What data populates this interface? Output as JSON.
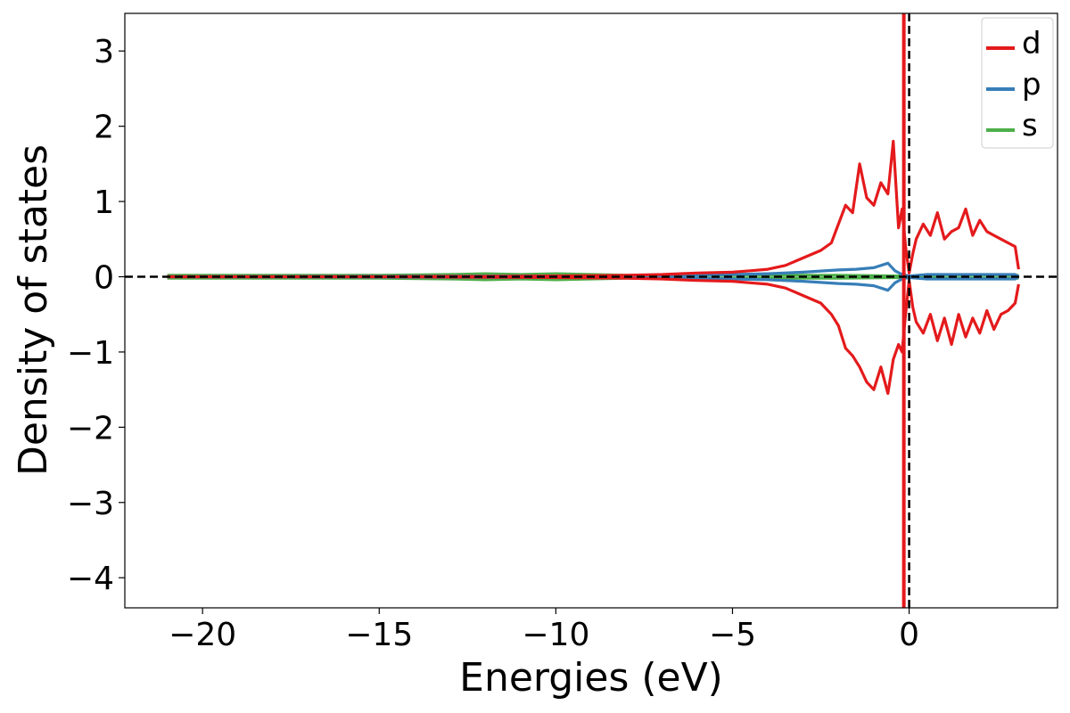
{
  "chart_data": {
    "type": "line",
    "title": "",
    "xlabel": "Energies (eV)",
    "ylabel": "Density of states",
    "xlim": [
      -22.2,
      4.2
    ],
    "ylim": [
      -4.4,
      3.5
    ],
    "x_ticks": [
      -20,
      -15,
      -10,
      -5,
      0
    ],
    "x_tick_labels": [
      "−20",
      "−15",
      "−10",
      "−5",
      "0"
    ],
    "y_ticks": [
      -4,
      -3,
      -2,
      -1,
      0,
      1,
      2,
      3
    ],
    "y_tick_labels": [
      "−4",
      "−3",
      "−2",
      "−1",
      "0",
      "1",
      "2",
      "3"
    ],
    "grid": false,
    "legend_position": "top-right",
    "reference_lines": [
      {
        "orientation": "horizontal",
        "value": 0,
        "style": "dashed",
        "color": "#000000"
      },
      {
        "orientation": "vertical",
        "value": 0,
        "style": "dashed",
        "color": "#000000"
      }
    ],
    "series": [
      {
        "name": "d",
        "color": "#e41a1c",
        "spin_up": {
          "x": [
            -21,
            -15,
            -10,
            -8,
            -7,
            -6,
            -5,
            -4.5,
            -4,
            -3.5,
            -3,
            -2.5,
            -2.2,
            -2,
            -1.8,
            -1.6,
            -1.4,
            -1.2,
            -1,
            -0.8,
            -0.6,
            -0.45,
            -0.3,
            -0.2,
            -0.1,
            0,
            0.1,
            0.2,
            0.4,
            0.6,
            0.8,
            1,
            1.2,
            1.4,
            1.6,
            1.8,
            2,
            2.2,
            2.4,
            2.6,
            2.8,
            3,
            3.1
          ],
          "y": [
            0,
            0,
            0.01,
            0.02,
            0.03,
            0.05,
            0.06,
            0.08,
            0.1,
            0.15,
            0.25,
            0.35,
            0.45,
            0.7,
            0.95,
            0.85,
            1.5,
            1.05,
            0.95,
            1.25,
            1.1,
            1.8,
            0.65,
            0.9,
            0.4,
            0.05,
            0.3,
            0.5,
            0.7,
            0.55,
            0.85,
            0.5,
            0.6,
            0.65,
            0.9,
            0.55,
            0.75,
            0.6,
            0.55,
            0.5,
            0.45,
            0.4,
            0.1
          ]
        },
        "spin_down": {
          "x": [
            -21,
            -15,
            -10,
            -8,
            -7,
            -6,
            -5,
            -4.5,
            -4,
            -3.5,
            -3,
            -2.5,
            -2.2,
            -2,
            -1.8,
            -1.6,
            -1.4,
            -1.2,
            -1,
            -0.8,
            -0.6,
            -0.45,
            -0.3,
            -0.2,
            -0.1,
            0,
            0.1,
            0.2,
            0.4,
            0.6,
            0.8,
            1,
            1.2,
            1.4,
            1.6,
            1.8,
            2,
            2.2,
            2.4,
            2.6,
            2.8,
            3,
            3.1
          ],
          "y": [
            0,
            0,
            -0.01,
            -0.02,
            -0.03,
            -0.05,
            -0.06,
            -0.08,
            -0.1,
            -0.15,
            -0.25,
            -0.35,
            -0.5,
            -0.65,
            -0.95,
            -1.05,
            -1.2,
            -1.4,
            -1.5,
            -1.2,
            -1.55,
            -1.1,
            -0.9,
            -1.0,
            -0.5,
            -0.05,
            -0.4,
            -0.6,
            -0.75,
            -0.5,
            -0.85,
            -0.55,
            -0.9,
            -0.5,
            -0.8,
            -0.55,
            -0.75,
            -0.45,
            -0.7,
            -0.5,
            -0.45,
            -0.35,
            -0.1
          ]
        },
        "spike": {
          "x": -0.15,
          "y_top": 3.5,
          "y_bottom": -4.4
        }
      },
      {
        "name": "p",
        "color": "#377eb8",
        "spin_up": {
          "x": [
            -21,
            -10,
            -8,
            -6,
            -4,
            -3,
            -2,
            -1.5,
            -1,
            -0.6,
            -0.4,
            -0.2,
            0,
            0.5,
            1,
            2,
            3,
            3.1
          ],
          "y": [
            0,
            0.01,
            0.01,
            0.02,
            0.04,
            0.06,
            0.09,
            0.1,
            0.12,
            0.18,
            0.08,
            0.03,
            0.01,
            0.03,
            0.03,
            0.03,
            0.03,
            0
          ],
          "mirror": true
        }
      },
      {
        "name": "s",
        "color": "#4daf4a",
        "spin_up": {
          "x": [
            -21,
            -15,
            -13,
            -12,
            -11,
            -10,
            -9,
            -8,
            -6,
            -4,
            -2,
            0,
            1,
            2,
            3,
            3.1
          ],
          "y": [
            0.02,
            0.02,
            0.03,
            0.04,
            0.03,
            0.04,
            0.03,
            0.02,
            0.02,
            0.02,
            0.02,
            0.01,
            0.02,
            0.02,
            0.02,
            0.02
          ],
          "mirror": true
        }
      }
    ]
  }
}
